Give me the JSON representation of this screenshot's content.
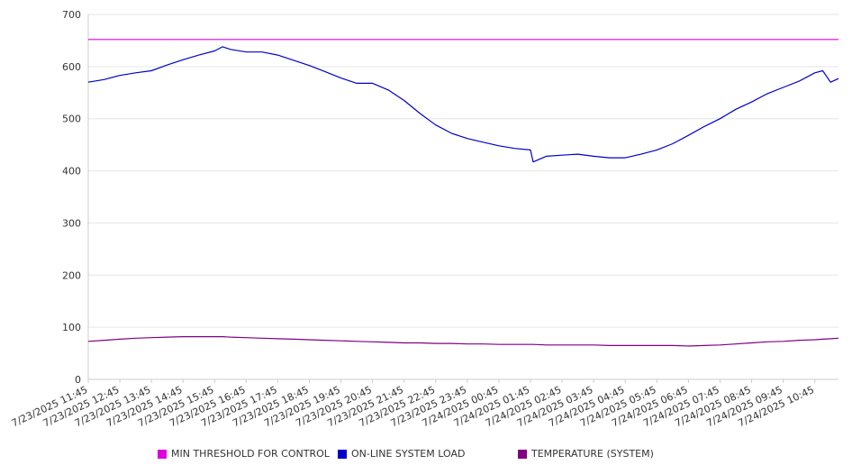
{
  "chart_data": {
    "type": "line",
    "title": "",
    "xlabel": "",
    "ylabel": "",
    "ylim": [
      0,
      700
    ],
    "yticks": [
      0,
      100,
      200,
      300,
      400,
      500,
      600,
      700
    ],
    "grid": "horizontal",
    "legend_position": "bottom",
    "x_tick_labels": [
      "7/23/2025 11:45",
      "7/23/2025 12:45",
      "7/23/2025 13:45",
      "7/23/2025 14:45",
      "7/23/2025 15:45",
      "7/23/2025 16:45",
      "7/23/2025 17:45",
      "7/23/2025 18:45",
      "7/23/2025 19:45",
      "7/23/2025 20:45",
      "7/23/2025 21:45",
      "7/23/2025 22:45",
      "7/23/2025 23:45",
      "7/24/2025 00:45",
      "7/24/2025 01:45",
      "7/24/2025 02:45",
      "7/24/2025 03:45",
      "7/24/2025 04:45",
      "7/24/2025 05:45",
      "7/24/2025 06:45",
      "7/24/2025 07:45",
      "7/24/2025 08:45",
      "7/24/2025 09:45",
      "7/24/2025 10:45"
    ],
    "x": [
      "7/23/2025 11:45",
      "7/23/2025 12:15",
      "7/23/2025 12:45",
      "7/23/2025 13:15",
      "7/23/2025 13:45",
      "7/23/2025 14:15",
      "7/23/2025 14:45",
      "7/23/2025 15:15",
      "7/23/2025 15:45",
      "7/23/2025 16:00",
      "7/23/2025 16:15",
      "7/23/2025 16:45",
      "7/23/2025 17:15",
      "7/23/2025 17:45",
      "7/23/2025 18:15",
      "7/23/2025 18:45",
      "7/23/2025 19:15",
      "7/23/2025 19:45",
      "7/23/2025 20:15",
      "7/23/2025 20:45",
      "7/23/2025 21:15",
      "7/23/2025 21:45",
      "7/23/2025 22:15",
      "7/23/2025 22:45",
      "7/23/2025 23:15",
      "7/23/2025 23:45",
      "7/24/2025 00:15",
      "7/24/2025 00:45",
      "7/24/2025 01:15",
      "7/24/2025 01:45",
      "7/24/2025 01:50",
      "7/24/2025 02:15",
      "7/24/2025 02:45",
      "7/24/2025 03:15",
      "7/24/2025 03:45",
      "7/24/2025 04:15",
      "7/24/2025 04:45",
      "7/24/2025 05:15",
      "7/24/2025 05:45",
      "7/24/2025 06:15",
      "7/24/2025 06:45",
      "7/24/2025 07:15",
      "7/24/2025 07:45",
      "7/24/2025 08:15",
      "7/24/2025 08:45",
      "7/24/2025 09:15",
      "7/24/2025 09:45",
      "7/24/2025 10:15",
      "7/24/2025 10:45",
      "7/24/2025 11:00",
      "7/24/2025 11:15",
      "7/24/2025 11:30"
    ],
    "series": [
      {
        "name": "MIN THRESHOLD FOR CONTROL",
        "color": "#dd00dd",
        "values": [
          652,
          652,
          652,
          652,
          652,
          652,
          652,
          652,
          652,
          652,
          652,
          652,
          652,
          652,
          652,
          652,
          652,
          652,
          652,
          652,
          652,
          652,
          652,
          652,
          652,
          652,
          652,
          652,
          652,
          652,
          652,
          652,
          652,
          652,
          652,
          652,
          652,
          652,
          652,
          652,
          652,
          652,
          652,
          652,
          652,
          652,
          652,
          652,
          652,
          652,
          652,
          652
        ]
      },
      {
        "name": "ON-LINE SYSTEM LOAD",
        "color": "#0000cc",
        "values": [
          570,
          575,
          583,
          588,
          592,
          603,
          613,
          622,
          630,
          638,
          633,
          628,
          628,
          622,
          612,
          602,
          590,
          578,
          568,
          568,
          555,
          535,
          510,
          488,
          472,
          462,
          455,
          448,
          443,
          440,
          417,
          428,
          430,
          432,
          428,
          425,
          425,
          432,
          440,
          452,
          468,
          485,
          500,
          518,
          532,
          548,
          560,
          572,
          588,
          592,
          570,
          577
        ]
      },
      {
        "name": "TEMPERATURE (SYSTEM)",
        "color": "#800080",
        "values": [
          73,
          75,
          77,
          79,
          80,
          81,
          82,
          82,
          82,
          82,
          81,
          80,
          79,
          78,
          77,
          76,
          75,
          74,
          73,
          72,
          71,
          70,
          70,
          69,
          69,
          68,
          68,
          67,
          67,
          67,
          67,
          66,
          66,
          66,
          66,
          65,
          65,
          65,
          65,
          65,
          64,
          65,
          66,
          68,
          70,
          72,
          73,
          75,
          76,
          77,
          78,
          79
        ]
      }
    ]
  }
}
